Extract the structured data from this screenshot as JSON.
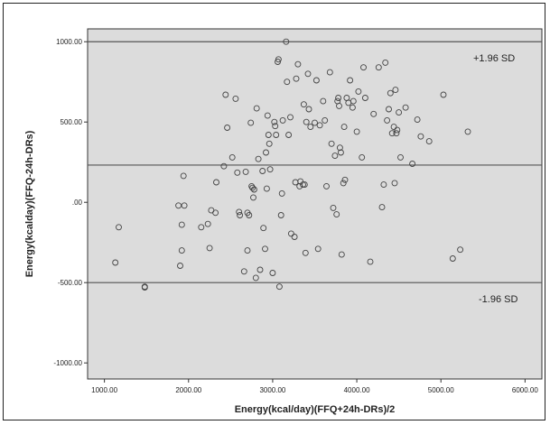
{
  "chart_data": {
    "type": "scatter",
    "title": "",
    "xlabel": "Energy(kcal/day)(FFQ+24h-DRs)/2",
    "ylabel": "Energy(kcalday)(FFQ-24h-DRs)",
    "xlim": [
      800,
      6200
    ],
    "ylim": [
      -1100,
      1080
    ],
    "x_ticks": [
      1000,
      2000,
      3000,
      4000,
      5000,
      6000
    ],
    "x_tick_labels": [
      "1000.00",
      "2000.00",
      "3000.00",
      "4000.00",
      "5000.00",
      "6000.00"
    ],
    "y_ticks": [
      1000,
      500,
      0,
      -500,
      -1000
    ],
    "y_tick_labels": [
      "1000.00",
      "500.00",
      ".00",
      "-500.00",
      "-1000.00"
    ],
    "grid": false,
    "plot_background": "#dcdcdc",
    "marker_color": "#444444",
    "reference_lines": [
      {
        "label": "+1.96 SD",
        "y": 1000
      },
      {
        "label": "",
        "y": 232
      },
      {
        "label": "-1.96 SD",
        "y": -500
      }
    ],
    "points": [
      [
        1130,
        -375
      ],
      [
        1170,
        -155
      ],
      [
        1480,
        -525
      ],
      [
        1480,
        -530
      ],
      [
        1880,
        -20
      ],
      [
        1900,
        -395
      ],
      [
        1920,
        -300
      ],
      [
        1920,
        -140
      ],
      [
        1940,
        165
      ],
      [
        1950,
        -20
      ],
      [
        2150,
        -155
      ],
      [
        2230,
        -135
      ],
      [
        2250,
        -285
      ],
      [
        2270,
        -50
      ],
      [
        2320,
        -65
      ],
      [
        2330,
        125
      ],
      [
        2420,
        225
      ],
      [
        2440,
        670
      ],
      [
        2460,
        465
      ],
      [
        2520,
        280
      ],
      [
        2560,
        645
      ],
      [
        2580,
        185
      ],
      [
        2600,
        -60
      ],
      [
        2610,
        -80
      ],
      [
        2660,
        -430
      ],
      [
        2680,
        190
      ],
      [
        2700,
        -300
      ],
      [
        2700,
        -65
      ],
      [
        2720,
        -80
      ],
      [
        2740,
        495
      ],
      [
        2750,
        100
      ],
      [
        2760,
        90
      ],
      [
        2770,
        30
      ],
      [
        2780,
        80
      ],
      [
        2800,
        -470
      ],
      [
        2810,
        585
      ],
      [
        2830,
        270
      ],
      [
        2850,
        -420
      ],
      [
        2880,
        195
      ],
      [
        2890,
        -160
      ],
      [
        2910,
        -290
      ],
      [
        2920,
        310
      ],
      [
        2930,
        85
      ],
      [
        2940,
        540
      ],
      [
        2950,
        420
      ],
      [
        2960,
        365
      ],
      [
        2970,
        205
      ],
      [
        3000,
        -440
      ],
      [
        3020,
        500
      ],
      [
        3030,
        475
      ],
      [
        3040,
        420
      ],
      [
        3060,
        875
      ],
      [
        3070,
        890
      ],
      [
        3080,
        -525
      ],
      [
        3100,
        -80
      ],
      [
        3110,
        55
      ],
      [
        3120,
        510
      ],
      [
        3160,
        1000
      ],
      [
        3170,
        750
      ],
      [
        3190,
        420
      ],
      [
        3210,
        530
      ],
      [
        3220,
        -195
      ],
      [
        3260,
        -215
      ],
      [
        3270,
        125
      ],
      [
        3280,
        770
      ],
      [
        3300,
        860
      ],
      [
        3320,
        100
      ],
      [
        3330,
        130
      ],
      [
        3360,
        110
      ],
      [
        3370,
        610
      ],
      [
        3380,
        110
      ],
      [
        3390,
        -315
      ],
      [
        3400,
        500
      ],
      [
        3420,
        800
      ],
      [
        3430,
        580
      ],
      [
        3450,
        470
      ],
      [
        3500,
        495
      ],
      [
        3520,
        760
      ],
      [
        3540,
        -290
      ],
      [
        3560,
        480
      ],
      [
        3600,
        630
      ],
      [
        3620,
        510
      ],
      [
        3640,
        100
      ],
      [
        3680,
        810
      ],
      [
        3700,
        365
      ],
      [
        3720,
        -35
      ],
      [
        3740,
        290
      ],
      [
        3760,
        -75
      ],
      [
        3770,
        630
      ],
      [
        3780,
        650
      ],
      [
        3790,
        600
      ],
      [
        3800,
        340
      ],
      [
        3810,
        310
      ],
      [
        3820,
        -325
      ],
      [
        3840,
        120
      ],
      [
        3850,
        470
      ],
      [
        3860,
        140
      ],
      [
        3880,
        650
      ],
      [
        3900,
        620
      ],
      [
        3920,
        760
      ],
      [
        3950,
        590
      ],
      [
        3960,
        630
      ],
      [
        4000,
        440
      ],
      [
        4020,
        690
      ],
      [
        4060,
        280
      ],
      [
        4080,
        840
      ],
      [
        4100,
        650
      ],
      [
        4160,
        -370
      ],
      [
        4200,
        550
      ],
      [
        4260,
        840
      ],
      [
        4300,
        -30
      ],
      [
        4320,
        110
      ],
      [
        4340,
        870
      ],
      [
        4360,
        510
      ],
      [
        4380,
        580
      ],
      [
        4400,
        680
      ],
      [
        4420,
        430
      ],
      [
        4440,
        470
      ],
      [
        4450,
        120
      ],
      [
        4460,
        700
      ],
      [
        4470,
        430
      ],
      [
        4480,
        450
      ],
      [
        4500,
        560
      ],
      [
        4520,
        280
      ],
      [
        4580,
        590
      ],
      [
        4660,
        240
      ],
      [
        4720,
        515
      ],
      [
        4760,
        410
      ],
      [
        4860,
        380
      ],
      [
        5030,
        670
      ],
      [
        5140,
        -350
      ],
      [
        5230,
        -295
      ],
      [
        5320,
        440
      ]
    ]
  }
}
